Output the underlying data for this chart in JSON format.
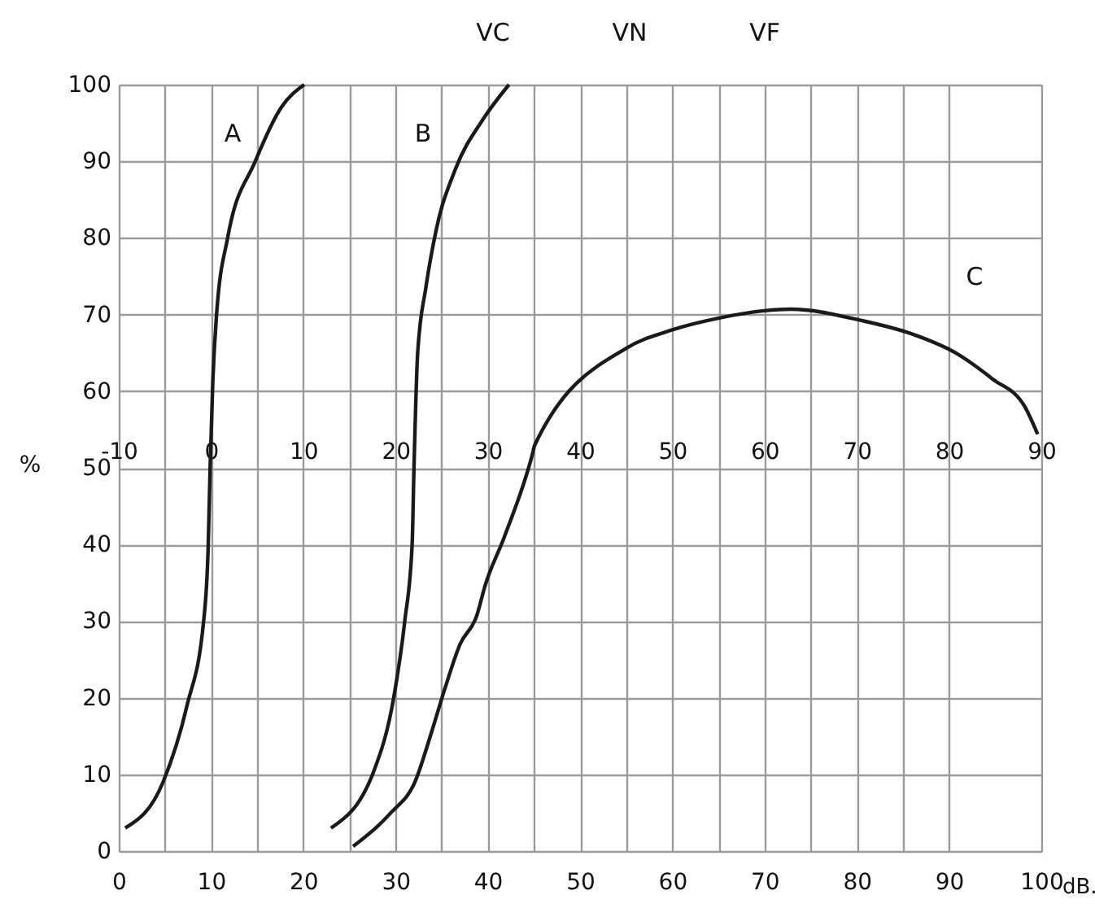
{
  "chart_data": {
    "type": "line",
    "xlabel": "dB.",
    "ylabel": "%",
    "xlim": [
      0,
      100
    ],
    "ylim": [
      0,
      100
    ],
    "xticks": [
      0,
      {
        "value": 5,
        "label": null
      },
      10,
      {
        "value": 15,
        "label": null
      },
      20,
      {
        "value": 25,
        "label": null
      },
      30,
      {
        "value": 35,
        "label": null
      },
      40,
      {
        "value": 45,
        "label": null
      },
      50,
      {
        "value": 55,
        "label": null
      },
      60,
      {
        "value": 65,
        "label": null
      },
      70,
      {
        "value": 75,
        "label": null
      },
      80,
      {
        "value": 85,
        "label": null
      },
      90,
      100
    ],
    "yticks": [
      0,
      10,
      20,
      30,
      40,
      50,
      60,
      70,
      80,
      90,
      100
    ],
    "x2lim": [
      -10,
      90
    ],
    "x2ticks": [
      -10,
      0,
      10,
      20,
      30,
      40,
      50,
      60,
      70,
      80,
      90
    ],
    "grid": true,
    "line_style": "solid",
    "marker": "none",
    "series": [
      {
        "color": "#1a1a1a",
        "x": [
          0.7,
          4.8,
          7.4,
          9.2,
          9.7,
          9.9,
          10.2,
          10.6,
          11.8,
          14.8,
          17.6,
          20.1
        ],
        "values": [
          3,
          9,
          19,
          30,
          40,
          50,
          61.5,
          70,
          80,
          90,
          97,
          100
        ]
      },
      {
        "color": "#1a1a1a",
        "x": [
          23,
          27.7,
          29.8,
          31,
          31.8,
          32,
          32.4,
          33.3,
          34.4,
          36.5,
          39.5,
          42.3
        ],
        "values": [
          3,
          10.6,
          20,
          30,
          40,
          50,
          65,
          73.6,
          81,
          89,
          95.5,
          100
        ]
      },
      {
        "color": "#1a1a1a",
        "x": [
          25.4,
          29.5,
          32.1,
          33.9,
          35.3,
          37,
          38.8,
          39.7,
          41.8,
          44.8,
          45.1,
          55,
          60,
          65.3,
          70,
          72.8,
          80.6,
          85.9,
          90.7,
          94.7,
          98.2,
          99.6
        ],
        "values": [
          0.6,
          5,
          9,
          15.5,
          21,
          27,
          30.7,
          34.6,
          41,
          51.6,
          53,
          65.6,
          68,
          69.6,
          70.5,
          70.7,
          69.2,
          67.5,
          65,
          61.6,
          58,
          54.4
        ]
      }
    ],
    "annotations": [
      "A",
      "B",
      "C",
      "VC",
      "VN",
      "VF"
    ]
  }
}
